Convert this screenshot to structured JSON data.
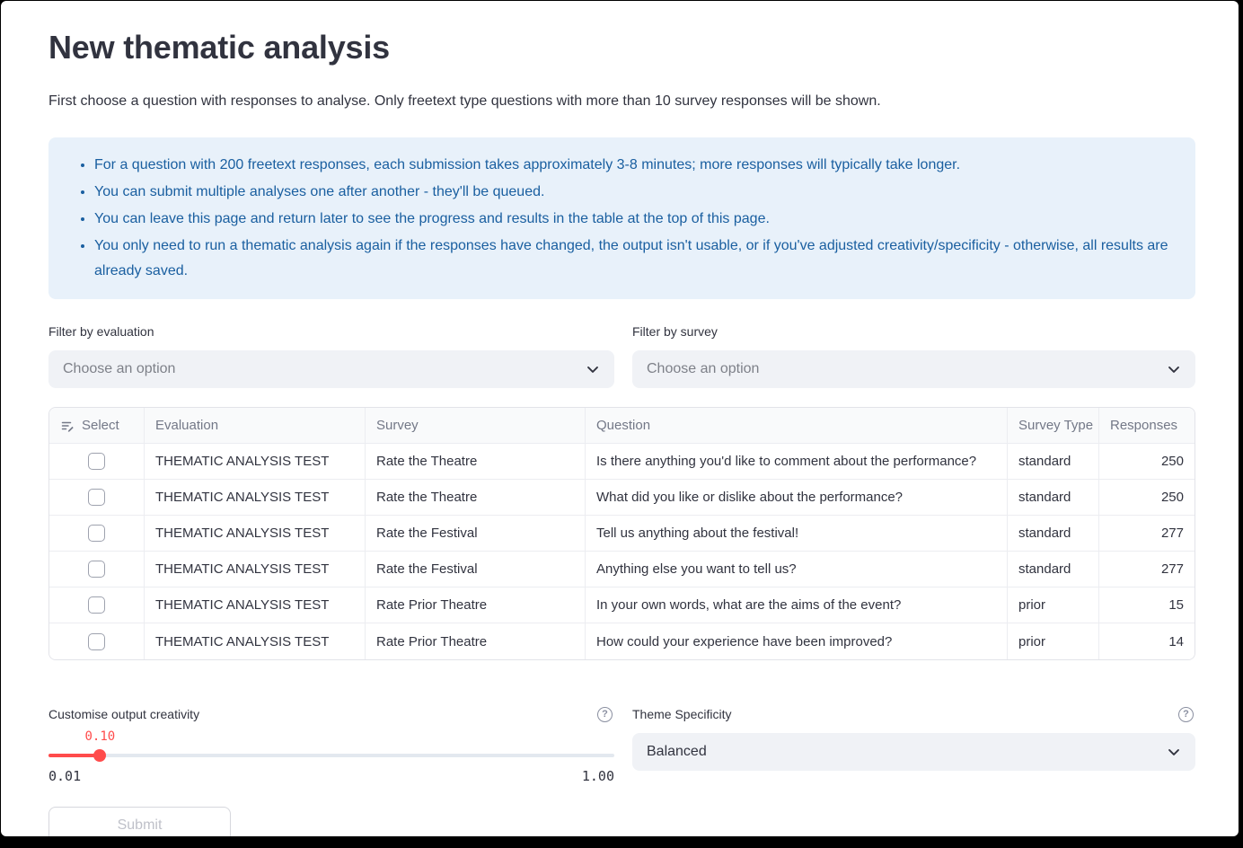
{
  "page": {
    "title": "New thematic analysis",
    "subtitle": "First choose a question with responses to analyse. Only freetext type questions with more than 10 survey responses will be shown."
  },
  "info_box": {
    "bullets": [
      "For a question with 200 freetext responses, each submission takes approximately 3-8 minutes; more responses will typically take longer.",
      "You can submit multiple analyses one after another - they'll be queued.",
      "You can leave this page and return later to see the progress and results in the table at the top of this page.",
      "You only need to run a thematic analysis again if the responses have changed, the output isn't usable, or if you've adjusted creativity/specificity - otherwise, all results are already saved."
    ]
  },
  "filters": {
    "evaluation": {
      "label": "Filter by evaluation",
      "placeholder": "Choose an option"
    },
    "survey": {
      "label": "Filter by survey",
      "placeholder": "Choose an option"
    }
  },
  "table": {
    "columns": [
      "Select",
      "Evaluation",
      "Survey",
      "Question",
      "Survey Type",
      "Responses"
    ],
    "rows": [
      {
        "evaluation": "THEMATIC ANALYSIS TEST",
        "survey": "Rate the Theatre",
        "question": "Is there anything you'd like to comment about the performance?",
        "survey_type": "standard",
        "responses": "250"
      },
      {
        "evaluation": "THEMATIC ANALYSIS TEST",
        "survey": "Rate the Theatre",
        "question": "What did you like or dislike about the performance?",
        "survey_type": "standard",
        "responses": "250"
      },
      {
        "evaluation": "THEMATIC ANALYSIS TEST",
        "survey": "Rate the Festival",
        "question": "Tell us anything about the festival!",
        "survey_type": "standard",
        "responses": "277"
      },
      {
        "evaluation": "THEMATIC ANALYSIS TEST",
        "survey": "Rate the Festival",
        "question": "Anything else you want to tell us?",
        "survey_type": "standard",
        "responses": "277"
      },
      {
        "evaluation": "THEMATIC ANALYSIS TEST",
        "survey": "Rate Prior Theatre",
        "question": "In your own words, what are the aims of the event?",
        "survey_type": "prior",
        "responses": "15"
      },
      {
        "evaluation": "THEMATIC ANALYSIS TEST",
        "survey": "Rate Prior Theatre",
        "question": "How could your experience have been improved?",
        "survey_type": "prior",
        "responses": "14"
      }
    ]
  },
  "creativity": {
    "label": "Customise output creativity",
    "value": "0.10",
    "min": "0.01",
    "max": "1.00",
    "percent": 9.1,
    "help_icon": "?"
  },
  "specificity": {
    "label": "Theme Specificity",
    "value": "Balanced",
    "help_icon": "?"
  },
  "submit": {
    "label": "Submit"
  },
  "colors": {
    "accent_red": "#FF4B4B",
    "info_text": "#1A5FA0",
    "info_bg": "#E8F1FA",
    "input_bg": "#F0F2F6"
  }
}
